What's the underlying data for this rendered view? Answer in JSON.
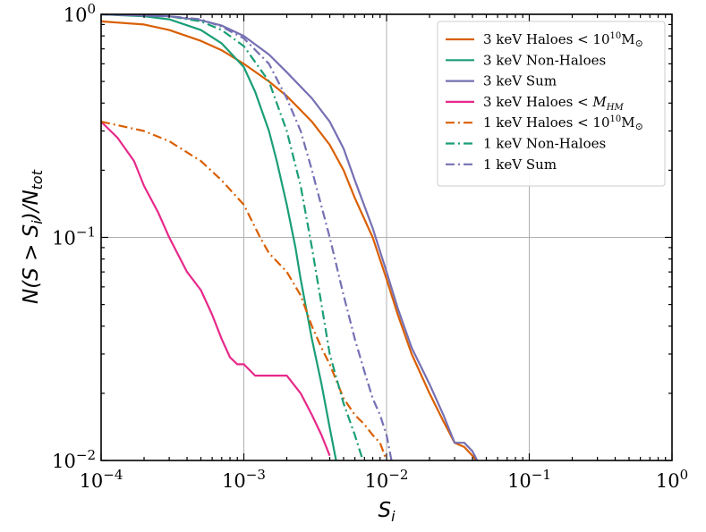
{
  "chart_data": {
    "type": "line",
    "xlabel_base": "S",
    "xlabel_sub": "i",
    "ylabel_parts": [
      "N(S > S",
      "i",
      ")/N",
      "tot"
    ],
    "xscale": "log",
    "yscale": "log",
    "xlim": [
      0.0001,
      1
    ],
    "ylim": [
      0.01,
      1
    ],
    "grid": true,
    "legend_position": "top-right",
    "x_ticks": [
      {
        "value": 0.0001,
        "base": "10",
        "exp": "−4"
      },
      {
        "value": 0.001,
        "base": "10",
        "exp": "−3"
      },
      {
        "value": 0.01,
        "base": "10",
        "exp": "−2"
      },
      {
        "value": 0.1,
        "base": "10",
        "exp": "−1"
      },
      {
        "value": 1,
        "base": "10",
        "exp": "0"
      }
    ],
    "y_ticks": [
      {
        "value": 0.01,
        "base": "10",
        "exp": "−2"
      },
      {
        "value": 0.1,
        "base": "10",
        "exp": "−1"
      },
      {
        "value": 1,
        "base": "10",
        "exp": "0"
      }
    ],
    "series": [
      {
        "key": "3kev-haloes",
        "label_main": "3 keV Haloes ",
        "label_tail": "M",
        "label_sub": "⊙",
        "label_lt": "< 10",
        "label_sup": "10",
        "color": "#d95f02",
        "dash": "solid",
        "x": [
          0.0001,
          0.0002,
          0.0003,
          0.0005,
          0.0007,
          0.001,
          0.0015,
          0.002,
          0.003,
          0.004,
          0.005,
          0.006,
          0.008,
          0.01,
          0.012,
          0.015,
          0.02,
          0.025,
          0.03,
          0.035,
          0.04,
          0.045
        ],
        "y": [
          0.93,
          0.9,
          0.85,
          0.76,
          0.69,
          0.6,
          0.5,
          0.43,
          0.33,
          0.26,
          0.2,
          0.15,
          0.1,
          0.065,
          0.045,
          0.03,
          0.02,
          0.015,
          0.012,
          0.0115,
          0.0105,
          0.0095
        ]
      },
      {
        "key": "3kev-nonhaloes",
        "label_main": "3 keV Non-Haloes",
        "color": "#1b9e77",
        "dash": "solid",
        "x": [
          0.0001,
          0.0002,
          0.0003,
          0.0005,
          0.0007,
          0.001,
          0.0012,
          0.0015,
          0.0017,
          0.002,
          0.0023,
          0.0025,
          0.003,
          0.0035,
          0.004,
          0.0045
        ],
        "y": [
          1.0,
          0.98,
          0.95,
          0.85,
          0.74,
          0.58,
          0.45,
          0.3,
          0.22,
          0.14,
          0.09,
          0.065,
          0.035,
          0.022,
          0.014,
          0.0095
        ]
      },
      {
        "key": "3kev-sum",
        "label_main": "3 keV Sum",
        "color": "#7570b3",
        "dash": "solid",
        "x": [
          0.0001,
          0.0003,
          0.0005,
          0.0007,
          0.001,
          0.0015,
          0.002,
          0.003,
          0.004,
          0.005,
          0.006,
          0.008,
          0.01,
          0.012,
          0.015,
          0.02,
          0.025,
          0.03,
          0.035,
          0.04,
          0.045
        ],
        "y": [
          1.0,
          0.98,
          0.94,
          0.89,
          0.8,
          0.66,
          0.55,
          0.42,
          0.33,
          0.25,
          0.18,
          0.11,
          0.07,
          0.048,
          0.032,
          0.022,
          0.016,
          0.012,
          0.012,
          0.011,
          0.0095
        ]
      },
      {
        "key": "3kev-haloes-mhm",
        "label_main": "3 keV Haloes < ",
        "label_tail": "M",
        "label_sub": "HM",
        "color": "#e7298a",
        "dash": "solid",
        "x": [
          0.0001,
          0.00013,
          0.00017,
          0.0002,
          0.00025,
          0.0003,
          0.0004,
          0.0005,
          0.0006,
          0.0007,
          0.0008,
          0.0009,
          0.001,
          0.0012,
          0.0015,
          0.002,
          0.0025,
          0.003,
          0.0035,
          0.004
        ],
        "y": [
          0.33,
          0.28,
          0.22,
          0.17,
          0.13,
          0.1,
          0.07,
          0.058,
          0.045,
          0.035,
          0.029,
          0.027,
          0.027,
          0.024,
          0.024,
          0.024,
          0.02,
          0.016,
          0.013,
          0.0105
        ]
      },
      {
        "key": "1kev-haloes",
        "label_main": "1 keV Haloes ",
        "label_tail": "M",
        "label_sub": "⊙",
        "label_lt": "< 10",
        "label_sup": "10",
        "color": "#d95f02",
        "dash": "dashdot",
        "x": [
          0.0001,
          0.0002,
          0.0003,
          0.0005,
          0.0007,
          0.001,
          0.0013,
          0.0015,
          0.002,
          0.0025,
          0.003,
          0.0035,
          0.004,
          0.005,
          0.006,
          0.007,
          0.008,
          0.009,
          0.01
        ],
        "y": [
          0.33,
          0.3,
          0.27,
          0.22,
          0.18,
          0.14,
          0.1,
          0.085,
          0.07,
          0.055,
          0.04,
          0.032,
          0.027,
          0.019,
          0.016,
          0.0145,
          0.013,
          0.012,
          0.01
        ]
      },
      {
        "key": "1kev-nonhaloes",
        "label_main": "1 keV Non-Haloes",
        "color": "#1b9e77",
        "dash": "dashdot",
        "x": [
          0.0001,
          0.0003,
          0.0005,
          0.0007,
          0.001,
          0.0015,
          0.002,
          0.0025,
          0.003,
          0.0035,
          0.004,
          0.005,
          0.006,
          0.007
        ],
        "y": [
          1.0,
          0.98,
          0.93,
          0.85,
          0.72,
          0.5,
          0.3,
          0.17,
          0.09,
          0.05,
          0.03,
          0.018,
          0.013,
          0.0095
        ]
      },
      {
        "key": "1kev-sum",
        "label_main": "1 keV Sum",
        "color": "#7570b3",
        "dash": "dashdot",
        "x": [
          0.0001,
          0.0003,
          0.0005,
          0.0007,
          0.001,
          0.0015,
          0.002,
          0.0025,
          0.003,
          0.004,
          0.005,
          0.006,
          0.007,
          0.008,
          0.009,
          0.01,
          0.011
        ],
        "y": [
          1.0,
          0.98,
          0.95,
          0.88,
          0.78,
          0.6,
          0.42,
          0.3,
          0.2,
          0.1,
          0.055,
          0.035,
          0.025,
          0.019,
          0.016,
          0.013,
          0.0095
        ]
      }
    ]
  }
}
